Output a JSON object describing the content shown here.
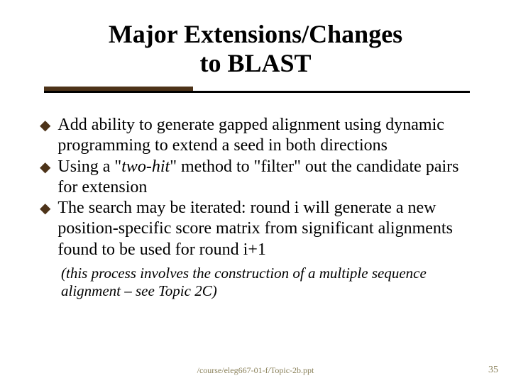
{
  "title": {
    "line1": "Major Extensions/Changes",
    "line2": "to BLAST",
    "font_size": 36,
    "color": "#000000"
  },
  "accent": {
    "short_bar_color": "#4d3319",
    "short_bar_width": 210,
    "long_line_color": "#000000",
    "long_line_width": 600
  },
  "bullets": [
    {
      "marker": "◆",
      "text": "Add ability to generate gapped alignment using dynamic programming to extend a seed in both directions"
    },
    {
      "marker": "◆",
      "prefix": "Using a \"",
      "italic": "two-hit",
      "suffix": "\" method to \"filter\" out the candidate pairs for extension"
    },
    {
      "marker": "◆",
      "text": "The search may be iterated: round i will generate a new position-specific score matrix from significant alignments found to be used for round i+1"
    }
  ],
  "note": "(this process involves the construction of a multiple sequence alignment – see Topic 2C)",
  "footer": {
    "path": "/course/eleg667-01-f/Topic-2b.ppt",
    "page": "35",
    "color": "#8a815a"
  },
  "background_color": "#ffffff",
  "body_font_size": 24,
  "note_font_size": 21,
  "bullet_marker_color": "#4d3319"
}
